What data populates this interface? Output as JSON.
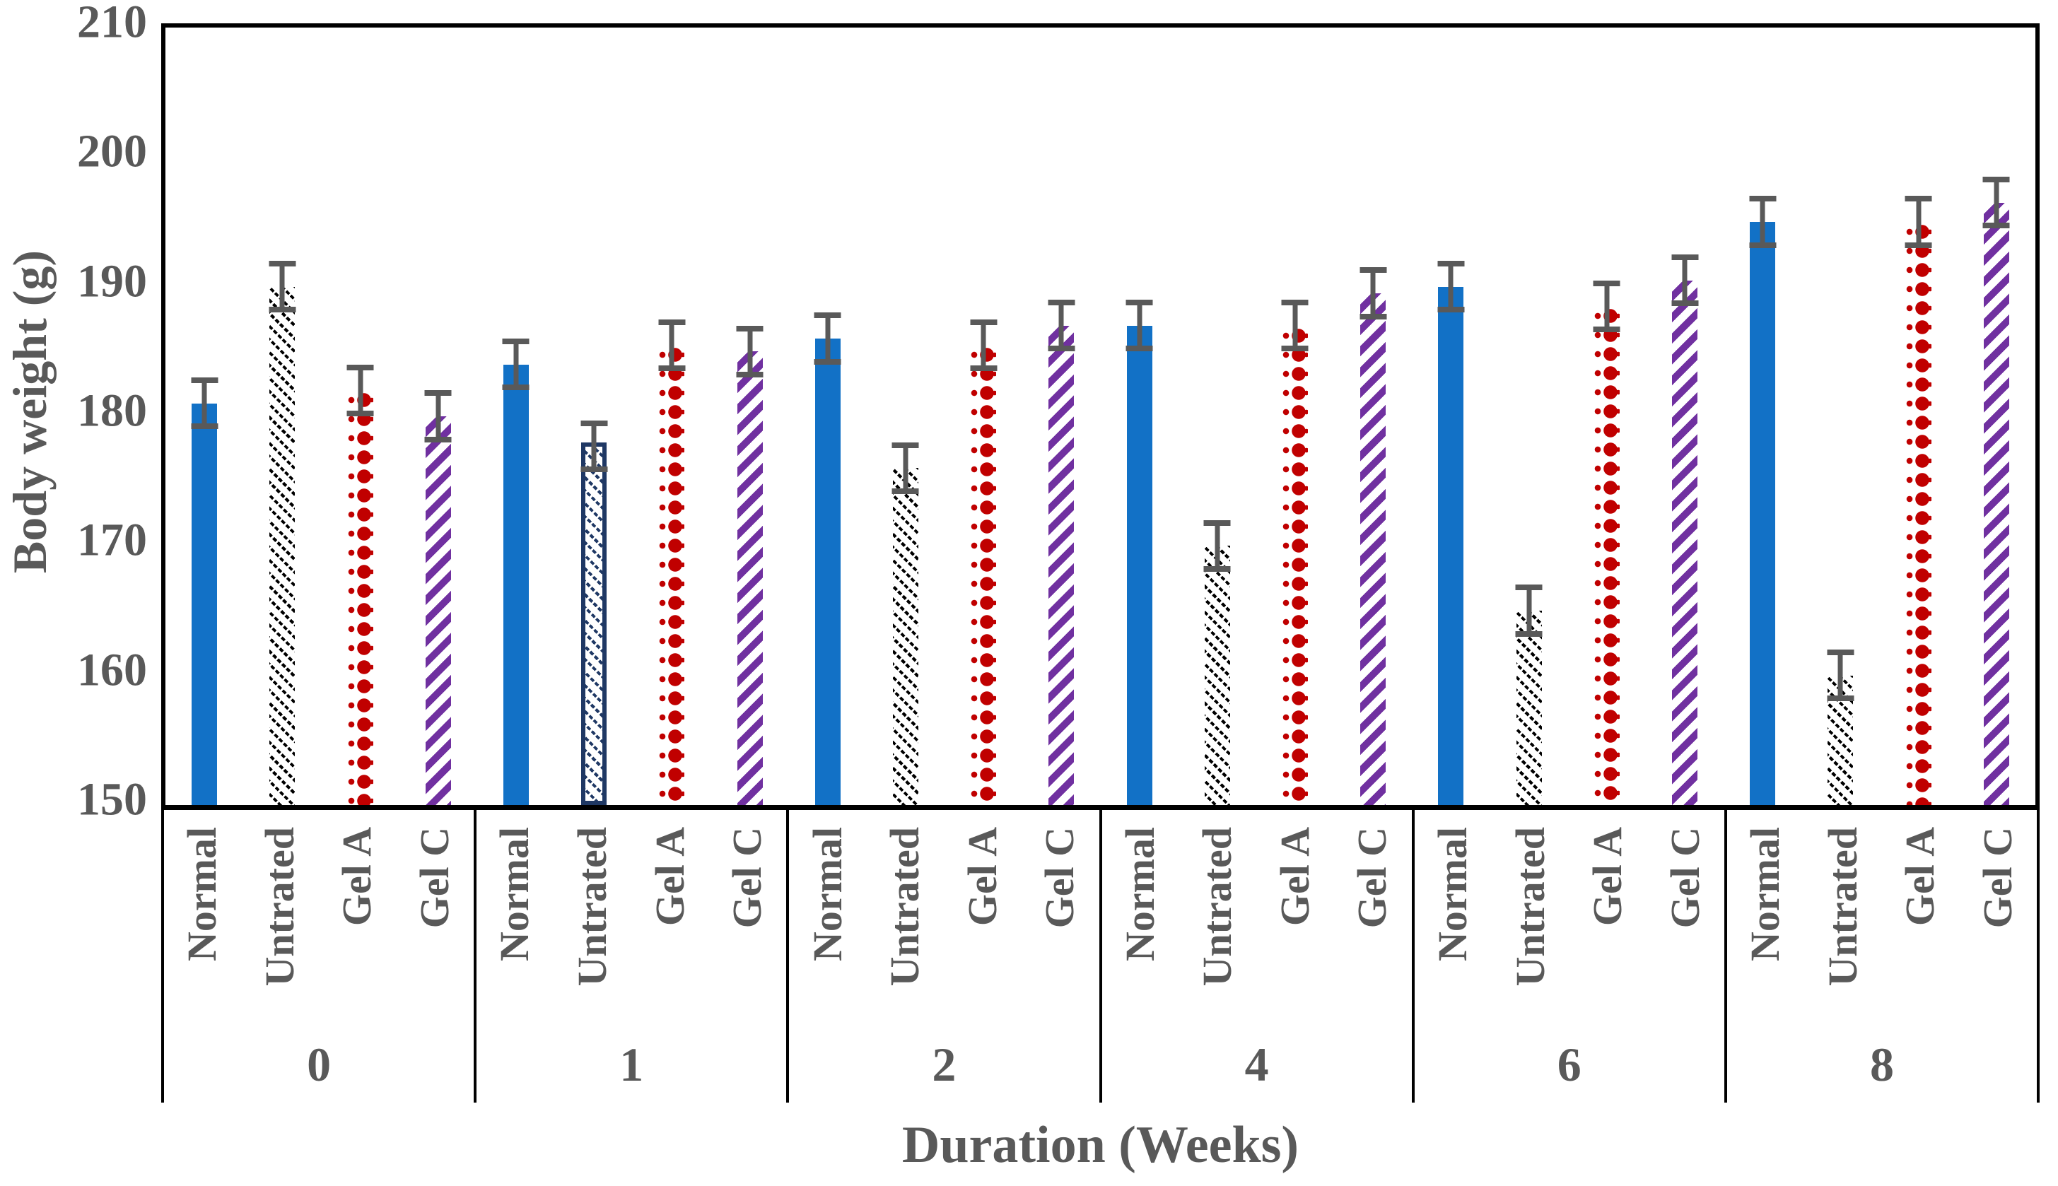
{
  "chart_data": {
    "type": "bar",
    "title": "",
    "xlabel": "Duration (Weeks)",
    "ylabel": "Body weight (g)",
    "ylim": [
      150,
      210
    ],
    "yticks": [
      210,
      200,
      190,
      180,
      170,
      160,
      150
    ],
    "categories": [
      "0",
      "1",
      "2",
      "4",
      "6",
      "8"
    ],
    "grid": false,
    "legend_position": "none",
    "text_color": "#595959",
    "axis_color": "#000000",
    "error_bar_color": "#595959",
    "series": [
      {
        "name": "Normal",
        "pattern": "solid",
        "color": "#1271C6",
        "values": [
          181,
          184,
          186,
          187,
          190,
          195
        ],
        "error": 2
      },
      {
        "name": "Untrated",
        "pattern": "diagonal-hatch-down",
        "color": "#000000",
        "values": [
          190,
          178,
          176,
          170,
          165,
          160
        ],
        "error": 2,
        "variant_overrides": {
          "1": {
            "color": "#1F3864",
            "outlined": true
          }
        }
      },
      {
        "name": "Gel A",
        "pattern": "diamond-dots",
        "color": "#C00000",
        "values": [
          182,
          185.5,
          185.5,
          187,
          188.5,
          195
        ],
        "error": 2
      },
      {
        "name": "Gel C",
        "pattern": "diagonal-stripes-up",
        "color": "#7030A0",
        "values": [
          180,
          185,
          187,
          189.5,
          190.5,
          196.5
        ],
        "error": 2
      }
    ]
  }
}
